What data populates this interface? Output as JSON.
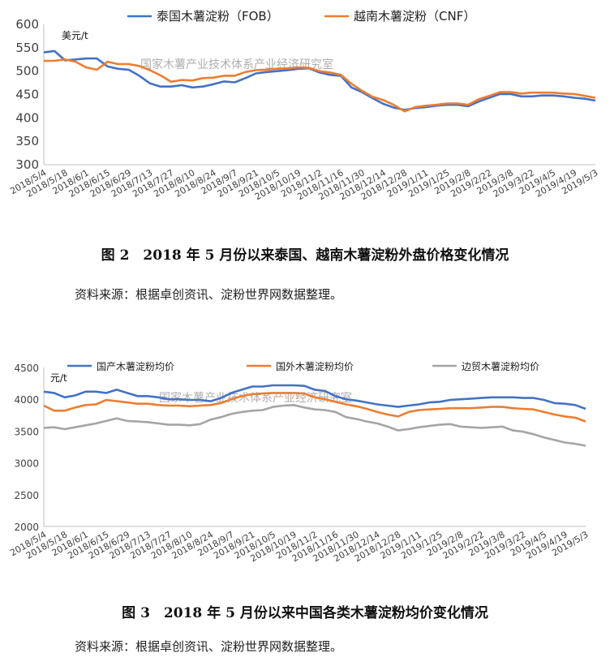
{
  "watermark": "国家木薯产业技术体系产业经济研究室",
  "figures": [
    {
      "caption": "图 2　2018 年 5 月份以来泰国、越南木薯淀粉外盘价格变化情况",
      "source": "资料来源：根据卓创资讯、淀粉世界网数据整理。"
    },
    {
      "caption": "图 3　2018 年 5 月份以来中国各类木薯淀粉均价变化情况",
      "source": "资料来源：根据卓创资讯、淀粉世界网数据整理。"
    }
  ],
  "chart_data": [
    {
      "type": "line",
      "unit_label": "美元/t",
      "ylim": [
        300,
        600
      ],
      "yticks": [
        300,
        350,
        400,
        450,
        500,
        550,
        600
      ],
      "grid": false,
      "legend_position": "top",
      "x": [
        "2018/5/4",
        "2018/5/11",
        "2018/5/18",
        "2018/5/25",
        "2018/6/1",
        "2018/6/8",
        "2018/6/15",
        "2018/6/22",
        "2018/6/29",
        "2018/7/6",
        "2018/7/13",
        "2018/7/20",
        "2018/7/27",
        "2018/8/3",
        "2018/8/10",
        "2018/8/17",
        "2018/8/24",
        "2018/8/31",
        "2018/9/7",
        "2018/9/14",
        "2018/9/21",
        "2018/9/28",
        "2018/10/5",
        "2018/10/12",
        "2018/10/19",
        "2018/10/26",
        "2018/11/2",
        "2018/11/9",
        "2018/11/16",
        "2018/11/23",
        "2018/11/30",
        "2018/12/7",
        "2018/12/14",
        "2018/12/21",
        "2018/12/28",
        "2019/1/4",
        "2019/1/11",
        "2019/1/18",
        "2019/1/25",
        "2019/2/1",
        "2019/2/8",
        "2019/2/15",
        "2019/2/22",
        "2019/3/1",
        "2019/3/8",
        "2019/3/15",
        "2019/3/22",
        "2019/3/29",
        "2019/4/5",
        "2019/4/12",
        "2019/4/19",
        "2019/4/26",
        "2019/5/3"
      ],
      "tick_labels": [
        "2018/5/4",
        "2018/5/18",
        "2018/6/1",
        "2018/6/15",
        "2018/6/29",
        "2018/7/13",
        "2018/7/27",
        "2018/8/10",
        "2018/8/24",
        "2018/9/7",
        "2018/9/21",
        "2018/10/5",
        "2018/10/19",
        "2018/11/2",
        "2018/11/16",
        "2018/11/30",
        "2018/12/14",
        "2018/12/28",
        "2019/1/11",
        "2019/1/25",
        "2019/2/8",
        "2019/2/22",
        "2019/3/8",
        "2019/3/22",
        "2019/4/5",
        "2019/4/19",
        "2019/5/3"
      ],
      "series": [
        {
          "name": "泰国木薯淀粉（FOB）",
          "color": "#4472c4",
          "values": [
            540,
            543,
            523,
            525,
            527,
            527,
            510,
            505,
            503,
            490,
            474,
            467,
            467,
            470,
            465,
            467,
            472,
            478,
            476,
            485,
            495,
            498,
            500,
            502,
            505,
            506,
            497,
            492,
            490,
            465,
            455,
            442,
            430,
            422,
            417,
            421,
            423,
            426,
            428,
            428,
            425,
            435,
            443,
            451,
            451,
            446,
            446,
            448,
            448,
            446,
            443,
            441,
            437
          ]
        },
        {
          "name": "越南木薯淀粉（CNF）",
          "color": "#ed7d31",
          "values": [
            522,
            522,
            525,
            520,
            508,
            503,
            520,
            515,
            515,
            511,
            502,
            491,
            477,
            481,
            480,
            485,
            486,
            490,
            490,
            498,
            502,
            503,
            505,
            506,
            508,
            507,
            500,
            497,
            492,
            473,
            458,
            445,
            438,
            428,
            414,
            423,
            426,
            428,
            431,
            431,
            428,
            440,
            447,
            455,
            455,
            452,
            454,
            454,
            454,
            452,
            451,
            447,
            443
          ]
        }
      ]
    },
    {
      "type": "line",
      "unit_label": "元/t",
      "ylim": [
        2000,
        4500
      ],
      "yticks": [
        2000,
        2500,
        3000,
        3500,
        4000,
        4500
      ],
      "grid": false,
      "legend_position": "top",
      "x": [
        "2018/5/4",
        "2018/5/11",
        "2018/5/18",
        "2018/5/25",
        "2018/6/1",
        "2018/6/8",
        "2018/6/15",
        "2018/6/22",
        "2018/6/29",
        "2018/7/6",
        "2018/7/13",
        "2018/7/20",
        "2018/7/27",
        "2018/8/3",
        "2018/8/10",
        "2018/8/17",
        "2018/8/24",
        "2018/8/31",
        "2018/9/7",
        "2018/9/14",
        "2018/9/21",
        "2018/9/28",
        "2018/10/5",
        "2018/10/12",
        "2018/10/19",
        "2018/10/26",
        "2018/11/2",
        "2018/11/9",
        "2018/11/16",
        "2018/11/23",
        "2018/11/30",
        "2018/12/7",
        "2018/12/14",
        "2018/12/21",
        "2018/12/28",
        "2019/1/4",
        "2019/1/11",
        "2019/1/18",
        "2019/1/25",
        "2019/2/1",
        "2019/2/8",
        "2019/2/15",
        "2019/2/22",
        "2019/3/1",
        "2019/3/8",
        "2019/3/15",
        "2019/3/22",
        "2019/3/29",
        "2019/4/5",
        "2019/4/12",
        "2019/4/19",
        "2019/4/26",
        "2019/5/3"
      ],
      "tick_labels": [
        "2018/5/4",
        "2018/5/18",
        "2018/6/1",
        "2018/6/15",
        "2018/6/29",
        "2018/7/13",
        "2018/7/27",
        "2018/8/10",
        "2018/8/24",
        "2018/9/7",
        "2018/9/21",
        "2018/10/5",
        "2018/10/19",
        "2018/11/2",
        "2018/11/16",
        "2018/11/30",
        "2018/12/14",
        "2018/12/28",
        "2019/1/11",
        "2019/1/25",
        "2019/2/8",
        "2019/2/22",
        "2019/3/8",
        "2019/3/22",
        "2019/4/5",
        "2019/4/19",
        "2019/5/3"
      ],
      "series": [
        {
          "name": "国产木薯淀粉均价",
          "color": "#4472c4",
          "values": [
            4120,
            4100,
            4030,
            4060,
            4120,
            4120,
            4100,
            4150,
            4100,
            4050,
            4050,
            4030,
            4000,
            4000,
            3990,
            3990,
            3970,
            4020,
            4100,
            4150,
            4200,
            4200,
            4220,
            4220,
            4220,
            4210,
            4150,
            4130,
            4050,
            4000,
            3980,
            3950,
            3920,
            3900,
            3880,
            3900,
            3920,
            3950,
            3960,
            3990,
            4000,
            4010,
            4020,
            4030,
            4030,
            4030,
            4020,
            4020,
            3990,
            3940,
            3930,
            3910,
            3850
          ]
        },
        {
          "name": "国外木薯淀粉均价",
          "color": "#ed7d31",
          "values": [
            3900,
            3820,
            3820,
            3870,
            3910,
            3920,
            3990,
            3970,
            3950,
            3930,
            3930,
            3910,
            3900,
            3900,
            3890,
            3900,
            3910,
            3940,
            4000,
            4050,
            4080,
            4090,
            4100,
            4100,
            4100,
            4090,
            4030,
            4000,
            3960,
            3920,
            3890,
            3850,
            3800,
            3760,
            3730,
            3800,
            3830,
            3840,
            3850,
            3860,
            3860,
            3860,
            3870,
            3880,
            3880,
            3860,
            3850,
            3840,
            3800,
            3760,
            3730,
            3710,
            3650
          ]
        },
        {
          "name": "边贸木薯淀粉均价",
          "color": "#a5a5a5",
          "values": [
            3550,
            3560,
            3530,
            3560,
            3590,
            3620,
            3660,
            3700,
            3660,
            3650,
            3640,
            3620,
            3600,
            3600,
            3590,
            3610,
            3680,
            3720,
            3770,
            3800,
            3820,
            3830,
            3880,
            3900,
            3910,
            3870,
            3840,
            3830,
            3800,
            3720,
            3690,
            3650,
            3620,
            3570,
            3510,
            3530,
            3560,
            3580,
            3600,
            3610,
            3570,
            3560,
            3550,
            3560,
            3570,
            3510,
            3490,
            3450,
            3400,
            3360,
            3320,
            3300,
            3270
          ]
        }
      ]
    }
  ]
}
